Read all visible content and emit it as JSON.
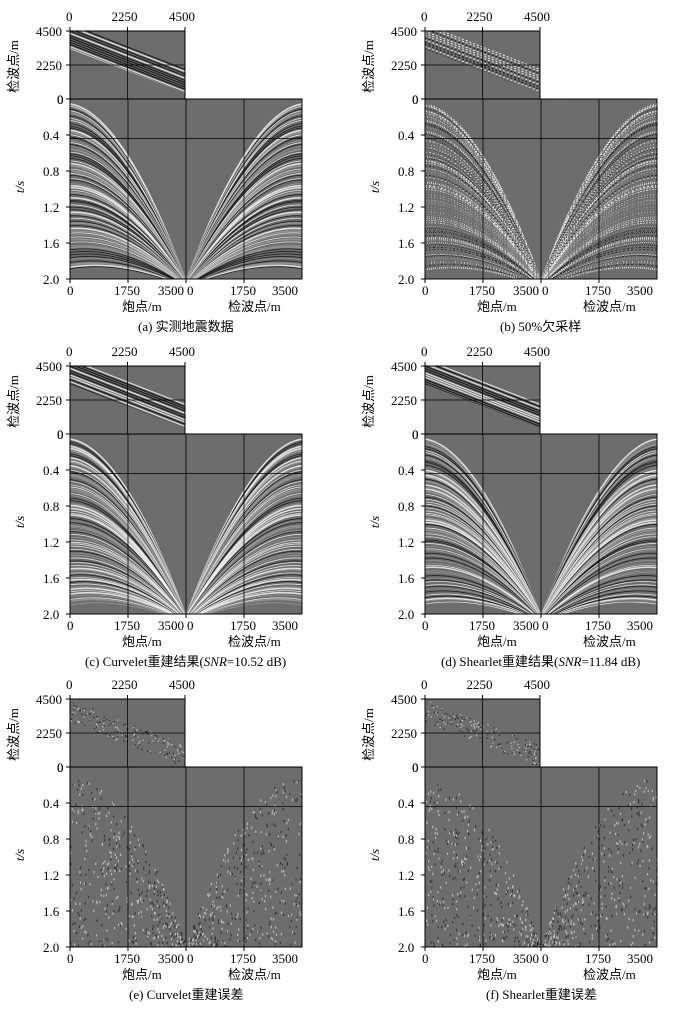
{
  "axis_text": {
    "receiver_label": "检波点/m",
    "time_label": "t/s",
    "shot_label": "炮点/m",
    "top_ticks": [
      "0",
      "2250",
      "4500"
    ],
    "side_ticks": [
      "4500",
      "2250",
      "0"
    ],
    "time_ticks": [
      "0",
      "0.4",
      "0.8",
      "1.2",
      "1.6",
      "2.0"
    ],
    "bottom_ticks_left": [
      "0",
      "1750",
      "3500"
    ],
    "bottom_ticks_right": [
      "0",
      "1750",
      "3500"
    ]
  },
  "panels": [
    {
      "id": "a",
      "caption": "(a) 实测地震数据",
      "type": "full"
    },
    {
      "id": "b",
      "caption": "(b) 50%欠采样",
      "type": "sampled"
    },
    {
      "id": "c",
      "caption_prefix": "(c) Curvelet重建结果(",
      "caption_snr_label": "SNR",
      "caption_suffix": "=10.52 dB)",
      "type": "full"
    },
    {
      "id": "d",
      "caption_prefix": "(d) Shearlet重建结果(",
      "caption_snr_label": "SNR",
      "caption_suffix": "=11.84 dB)",
      "type": "full"
    },
    {
      "id": "e",
      "caption": "(e) Curvelet重建误差",
      "type": "error"
    },
    {
      "id": "f",
      "caption": "(f) Shearlet重建误差",
      "type": "error"
    }
  ],
  "colors": {
    "background_gray": "#6d6d6d",
    "grid_line": "#000000"
  }
}
